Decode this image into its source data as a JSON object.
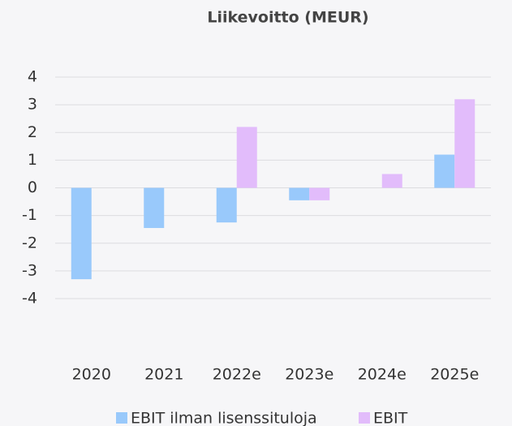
{
  "chart_data": {
    "type": "bar",
    "title": "Liikevoitto (MEUR)",
    "categories": [
      "2020",
      "2021",
      "2022e",
      "2023e",
      "2024e",
      "2025e"
    ],
    "series": [
      {
        "name": "EBIT ilman lisenssituloja",
        "color": "#99c9fb",
        "values": [
          -3.3,
          -1.45,
          -1.25,
          -0.45,
          null,
          1.2
        ]
      },
      {
        "name": "EBIT",
        "color": "#e2bcfb",
        "values": [
          null,
          null,
          2.2,
          -0.45,
          0.5,
          3.2
        ]
      }
    ],
    "ylim": [
      -4,
      4
    ],
    "yticks": [
      -4,
      -3,
      -2,
      -1,
      0,
      1,
      2,
      3,
      4
    ],
    "grid": true
  }
}
